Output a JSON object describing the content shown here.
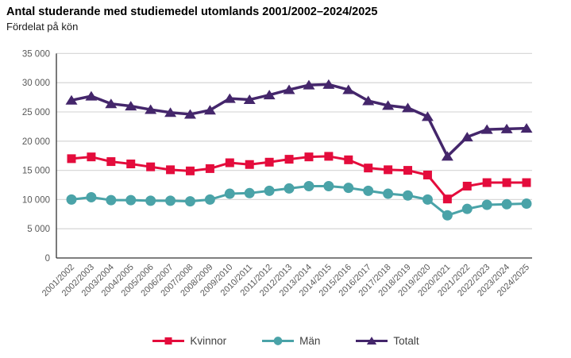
{
  "header": {
    "title": "Antal studerande med studiemedel utomlands 2001/2002–2024/2025",
    "subtitle": "Fördelat på kön"
  },
  "colors": {
    "background": "#ffffff",
    "grid": "#d9d9d9",
    "axis": "#333333",
    "tick_text": "#595959",
    "legend_text": "#404040",
    "kvinnor": "#e40c3c",
    "man": "#4aa3a8",
    "totalt": "#44266b"
  },
  "chart_data": {
    "type": "line",
    "title": "Antal studerande med studiemedel utomlands 2001/2002–2024/2025",
    "subtitle": "Fördelat på kön",
    "grid": true,
    "legend_position": "bottom",
    "xlabel": "",
    "ylabel": "",
    "ylim": [
      0,
      35000
    ],
    "ytick_step": 5000,
    "yticks": [
      {
        "value": 0,
        "label": "0"
      },
      {
        "value": 5000,
        "label": "5 000"
      },
      {
        "value": 10000,
        "label": "10 000"
      },
      {
        "value": 15000,
        "label": "15 000"
      },
      {
        "value": 20000,
        "label": "20 000"
      },
      {
        "value": 25000,
        "label": "25 000"
      },
      {
        "value": 30000,
        "label": "30 000"
      },
      {
        "value": 35000,
        "label": "35 000"
      }
    ],
    "categories": [
      "2001/2002",
      "2002/2003",
      "2003/2004",
      "2004/2005",
      "2005/2006",
      "2006/2007",
      "2007/2008",
      "2008/2009",
      "2009/2010",
      "2010/2011",
      "2011/2012",
      "2012/2013",
      "2013/2014",
      "2014/2015",
      "2015/2016",
      "2016/2017",
      "2017/2018",
      "2018/2019",
      "2019/2020",
      "2020/2021",
      "2021/2022",
      "2022/2023",
      "2023/2024",
      "2024/2025"
    ],
    "series": [
      {
        "name": "Kvinnor",
        "color": "#e40c3c",
        "marker": "square",
        "values": [
          17000,
          17300,
          16500,
          16100,
          15600,
          15100,
          14900,
          15300,
          16300,
          16000,
          16400,
          16900,
          17300,
          17400,
          16800,
          15400,
          15100,
          15000,
          14200,
          10100,
          12300,
          12900,
          12900,
          12900
        ]
      },
      {
        "name": "Män",
        "color": "#4aa3a8",
        "marker": "circle",
        "values": [
          10000,
          10400,
          9900,
          9900,
          9800,
          9800,
          9700,
          10000,
          11000,
          11100,
          11500,
          11900,
          12300,
          12300,
          12000,
          11500,
          11000,
          10700,
          10000,
          7300,
          8400,
          9100,
          9200,
          9300
        ]
      },
      {
        "name": "Totalt",
        "color": "#44266b",
        "marker": "triangle",
        "values": [
          27000,
          27700,
          26400,
          26000,
          25400,
          24900,
          24600,
          25300,
          27300,
          27100,
          27900,
          28800,
          29600,
          29700,
          28800,
          26900,
          26100,
          25700,
          24200,
          17400,
          20700,
          22000,
          22100,
          22200
        ]
      }
    ]
  }
}
